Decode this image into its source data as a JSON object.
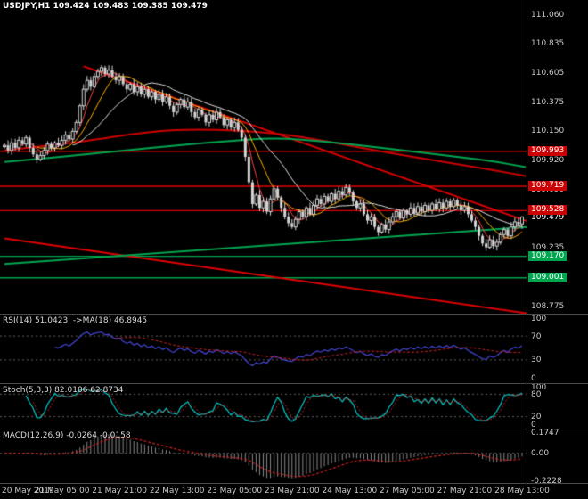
{
  "header": {
    "title": "USDJPY,H1 109.424 109.483 109.385 109.479"
  },
  "colors": {
    "background": "#000000",
    "candle": "#d4d4d4",
    "resistance_line": "#e00000",
    "support_line": "#00a550",
    "badge_red": "#cc0000",
    "badge_green": "#00a550",
    "axis_text": "#c8c8c8"
  },
  "price_axis": {
    "badges": [
      {
        "text": "109.993",
        "value": 109.993,
        "color": "#cc0000"
      },
      {
        "text": "109.719",
        "value": 109.719,
        "color": "#cc0000"
      },
      {
        "text": "109.528",
        "value": 109.528,
        "color": "#cc0000"
      },
      {
        "text": "109.170",
        "value": 109.17,
        "color": "#00a550"
      },
      {
        "text": "109.001",
        "value": 109.001,
        "color": "#00a550"
      }
    ],
    "current": {
      "text": "109.479",
      "value": 109.479
    }
  },
  "chart_data": [
    {
      "type": "candlestick",
      "title": "USDJPY,H1",
      "ylim": [
        108.72,
        111.18
      ],
      "y_ticks": [
        "111.060",
        "110.835",
        "110.605",
        "110.375",
        "110.150",
        "109.920",
        "109.690",
        "109.235",
        "108.775"
      ],
      "x_ticks": [
        {
          "label": "20 May 2019",
          "index": 0
        },
        {
          "label": "21 May 05:00",
          "index": 16
        },
        {
          "label": "21 May 21:00",
          "index": 32
        },
        {
          "label": "22 May 13:00",
          "index": 48
        },
        {
          "label": "23 May 05:00",
          "index": 64
        },
        {
          "label": "23 May 21:00",
          "index": 80
        },
        {
          "label": "24 May 13:00",
          "index": 96
        },
        {
          "label": "27 May 05:00",
          "index": 112
        },
        {
          "label": "27 May 21:00",
          "index": 128
        },
        {
          "label": "28 May 13:00",
          "index": 144
        }
      ],
      "last_ohlc": [
        109.424,
        109.483,
        109.385,
        109.479
      ],
      "closes": [
        110.04,
        110.0,
        110.06,
        110.02,
        110.08,
        110.05,
        110.1,
        110.02,
        109.97,
        109.93,
        109.96,
        110.0,
        110.05,
        110.02,
        110.06,
        110.04,
        110.08,
        110.12,
        110.09,
        110.15,
        110.22,
        110.35,
        110.48,
        110.55,
        110.5,
        110.58,
        110.62,
        110.65,
        110.6,
        110.63,
        110.58,
        110.55,
        110.58,
        110.52,
        110.48,
        110.52,
        110.46,
        110.5,
        110.44,
        110.48,
        110.42,
        110.46,
        110.4,
        110.44,
        110.38,
        110.42,
        110.35,
        110.3,
        110.36,
        110.4,
        110.34,
        110.38,
        110.3,
        110.26,
        110.32,
        110.28,
        110.22,
        110.28,
        110.24,
        110.3,
        110.26,
        110.2,
        110.24,
        110.18,
        110.22,
        110.16,
        110.1,
        109.95,
        109.75,
        109.58,
        109.65,
        109.55,
        109.6,
        109.52,
        109.62,
        109.7,
        109.63,
        109.55,
        109.48,
        109.43,
        109.4,
        109.46,
        109.52,
        109.48,
        109.55,
        109.5,
        109.57,
        109.62,
        109.58,
        109.64,
        109.6,
        109.66,
        109.62,
        109.68,
        109.65,
        109.71,
        109.67,
        109.6,
        109.55,
        109.58,
        109.5,
        109.45,
        109.48,
        109.4,
        109.36,
        109.42,
        109.38,
        109.44,
        109.48,
        109.52,
        109.47,
        109.53,
        109.5,
        109.55,
        109.51,
        109.56,
        109.52,
        109.57,
        109.53,
        109.58,
        109.54,
        109.59,
        109.55,
        109.6,
        109.56,
        109.61,
        109.57,
        109.53,
        109.56,
        109.5,
        109.45,
        109.4,
        109.33,
        109.27,
        109.24,
        109.3,
        109.25,
        109.28,
        109.34,
        109.38,
        109.33,
        109.4,
        109.44,
        109.42,
        109.479
      ],
      "levels": [
        {
          "price": 109.993,
          "color": "#e00000"
        },
        {
          "price": 109.719,
          "color": "#e00000"
        },
        {
          "price": 109.528,
          "color": "#e00000"
        },
        {
          "price": 109.17,
          "color": "#00a550"
        },
        {
          "price": 109.001,
          "color": "#00a550"
        }
      ],
      "trendlines": [
        {
          "x1": 22,
          "p1": 110.66,
          "x2": 146,
          "p2": 109.44,
          "color": "#e00000",
          "width": 2
        },
        {
          "x1": 0,
          "p1": 109.31,
          "x2": 146,
          "p2": 108.72,
          "color": "#e00000",
          "width": 2
        },
        {
          "x1": 0,
          "p1": 109.11,
          "x2": 146,
          "p2": 109.4,
          "color": "#00a550",
          "width": 2
        }
      ],
      "slow_mas": [
        {
          "color": "#cc0000",
          "width": 2,
          "points": [
            [
              0,
              110.0
            ],
            [
              20,
              110.06
            ],
            [
              40,
              110.15
            ],
            [
              55,
              110.17
            ],
            [
              75,
              110.14
            ],
            [
              90,
              110.07
            ],
            [
              105,
              109.99
            ],
            [
              120,
              109.92
            ],
            [
              135,
              109.85
            ],
            [
              145,
              109.8
            ]
          ]
        },
        {
          "color": "#00a550",
          "width": 2,
          "points": [
            [
              0,
              109.91
            ],
            [
              20,
              109.96
            ],
            [
              40,
              110.02
            ],
            [
              60,
              110.07
            ],
            [
              75,
              110.1
            ],
            [
              90,
              110.07
            ],
            [
              105,
              110.02
            ],
            [
              120,
              109.97
            ],
            [
              135,
              109.92
            ],
            [
              145,
              109.87
            ]
          ]
        }
      ],
      "fast_mas": [
        {
          "period": 5,
          "color": "#ff4444"
        },
        {
          "period": 10,
          "color": "#ffb000"
        },
        {
          "period": 20,
          "color": "#e0e0e0"
        }
      ]
    },
    {
      "type": "line",
      "name": "RSI",
      "label": "RSI(14) 51.0423  ->MA(18) 46.8945",
      "period": 14,
      "ma_period": 18,
      "values_current": [
        51.0423,
        46.8945
      ],
      "y_ticks": [
        "100",
        "70",
        "30",
        "0"
      ],
      "guides": [
        70,
        30
      ],
      "range": [
        0,
        100
      ],
      "colors": {
        "main": "#4646d8",
        "ma": "#cc2222"
      }
    },
    {
      "type": "line",
      "name": "Stochastic",
      "label": "Stoch(5,3,3) 82.0106 62.8734",
      "k_period": 5,
      "d_period": 3,
      "slowing": 3,
      "values_current": [
        82.0106,
        62.8734
      ],
      "y_ticks": [
        "100",
        "80",
        "20",
        "0"
      ],
      "guides": [
        80,
        20
      ],
      "range": [
        0,
        100
      ],
      "colors": {
        "k": "#00cccc",
        "d": "#cc2222"
      }
    },
    {
      "type": "line",
      "name": "MACD",
      "label": "MACD(12,26,9) -0.0264 -0.0158",
      "fast": 12,
      "slow": 26,
      "signal": 9,
      "values_current": [
        -0.0264,
        -0.0158
      ],
      "y_ticks": [
        "0.1747",
        "0.00",
        "-0.2228"
      ],
      "range": [
        -0.2228,
        0.1747
      ],
      "colors": {
        "hist": "#8a8a8a",
        "signal": "#cc2222"
      }
    }
  ]
}
